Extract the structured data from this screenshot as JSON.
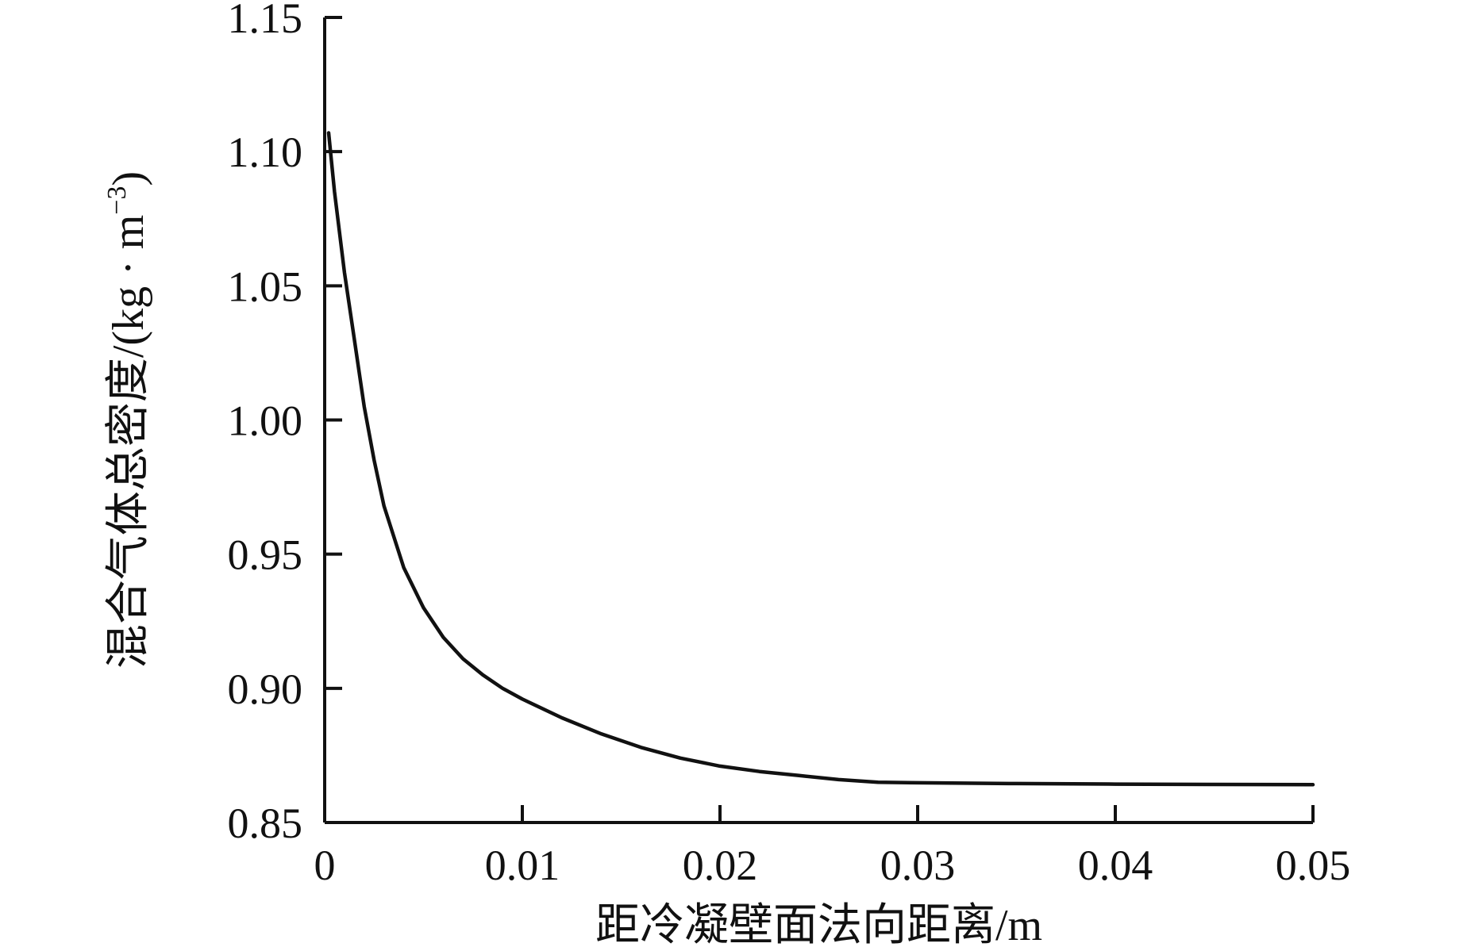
{
  "chart_data": {
    "type": "line",
    "title": "",
    "xlabel": "距冷凝壁面法向距离/m",
    "ylabel": "混合气体总密度/(kg · m",
    "ylabel_superscript": "−3",
    "ylabel_close": ")",
    "xlim": [
      0,
      0.05
    ],
    "ylim": [
      0.85,
      1.15
    ],
    "x_ticks": [
      0,
      0.01,
      0.02,
      0.03,
      0.04,
      0.05
    ],
    "x_tick_labels": [
      "0",
      "0.01",
      "0.02",
      "0.03",
      "0.04",
      "0.05"
    ],
    "y_ticks": [
      0.85,
      0.9,
      0.95,
      1.0,
      1.05,
      1.1,
      1.15
    ],
    "y_tick_labels": [
      "0.85",
      "0.90",
      "0.95",
      "1.00",
      "1.05",
      "1.10",
      "1.15"
    ],
    "grid": false,
    "series": [
      {
        "color": "#111111",
        "x": [
          0.0002,
          0.0005,
          0.001,
          0.0015,
          0.002,
          0.0025,
          0.003,
          0.004,
          0.005,
          0.006,
          0.007,
          0.008,
          0.009,
          0.01,
          0.012,
          0.014,
          0.016,
          0.018,
          0.02,
          0.022,
          0.024,
          0.026,
          0.028,
          0.03,
          0.035,
          0.04,
          0.045,
          0.05
        ],
        "y": [
          1.107,
          1.085,
          1.055,
          1.03,
          1.005,
          0.985,
          0.968,
          0.945,
          0.93,
          0.919,
          0.911,
          0.905,
          0.9,
          0.896,
          0.889,
          0.883,
          0.878,
          0.874,
          0.871,
          0.869,
          0.8675,
          0.866,
          0.865,
          0.8648,
          0.8645,
          0.8643,
          0.8642,
          0.8641
        ]
      }
    ]
  }
}
